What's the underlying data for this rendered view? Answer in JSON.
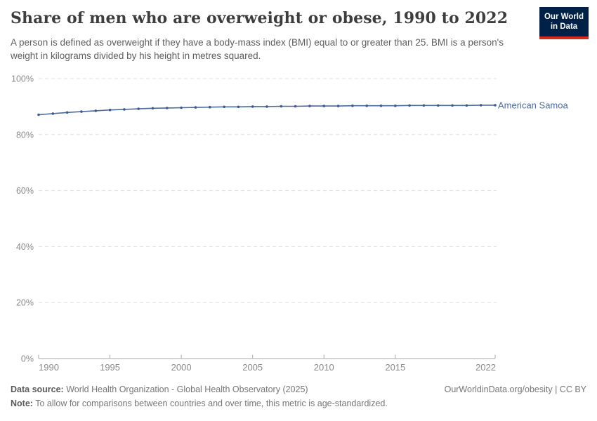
{
  "header": {
    "title": "Share of men who are overweight or obese, 1990 to 2022",
    "subtitle": "A person is defined as overweight if they have a body-mass index (BMI) equal to or greater than 25. BMI is a person's weight in kilograms divided by his height in metres squared.",
    "logo": {
      "line1": "Our World",
      "line2": "in Data",
      "bg_color": "#002147",
      "bar_color": "#d42b21"
    }
  },
  "chart_data": {
    "type": "line",
    "title": "Share of men who are overweight or obese, 1990 to 2022",
    "xlabel": "",
    "ylabel": "",
    "xlim": [
      1990,
      2022
    ],
    "ylim": [
      0,
      100
    ],
    "grid": "horizontal dashed",
    "legend_position": "end-of-line label",
    "x_ticks": [
      1990,
      1995,
      2000,
      2005,
      2010,
      2015,
      2022
    ],
    "y_ticks": [
      0,
      20,
      40,
      60,
      80,
      100
    ],
    "y_tick_labels": [
      "0%",
      "20%",
      "40%",
      "60%",
      "80%",
      "100%"
    ],
    "series": [
      {
        "name": "American Samoa",
        "color": "#4c6a9c",
        "dot_color": "#3d5a96",
        "x": [
          1990,
          1991,
          1992,
          1993,
          1994,
          1995,
          1996,
          1997,
          1998,
          1999,
          2000,
          2001,
          2002,
          2003,
          2004,
          2005,
          2006,
          2007,
          2008,
          2009,
          2010,
          2011,
          2012,
          2013,
          2014,
          2015,
          2016,
          2017,
          2018,
          2019,
          2020,
          2021,
          2022
        ],
        "values": [
          87.1,
          87.5,
          87.9,
          88.2,
          88.5,
          88.8,
          89.0,
          89.2,
          89.4,
          89.5,
          89.6,
          89.7,
          89.8,
          89.9,
          89.9,
          90.0,
          90.0,
          90.1,
          90.1,
          90.2,
          90.2,
          90.2,
          90.3,
          90.3,
          90.3,
          90.3,
          90.4,
          90.4,
          90.4,
          90.4,
          90.4,
          90.5,
          90.5
        ]
      }
    ],
    "colors": {
      "axis": "#a9a9a9",
      "grid": "#e0e0e0",
      "tick_label": "#8a8a8a"
    }
  },
  "footer": {
    "data_source_label": "Data source:",
    "data_source": " World Health Organization - Global Health Observatory (2025)",
    "note_label": "Note:",
    "note": " To allow for comparisons between countries and over time, this metric is age-standardized.",
    "link": "OurWorldinData.org/obesity | CC BY"
  }
}
